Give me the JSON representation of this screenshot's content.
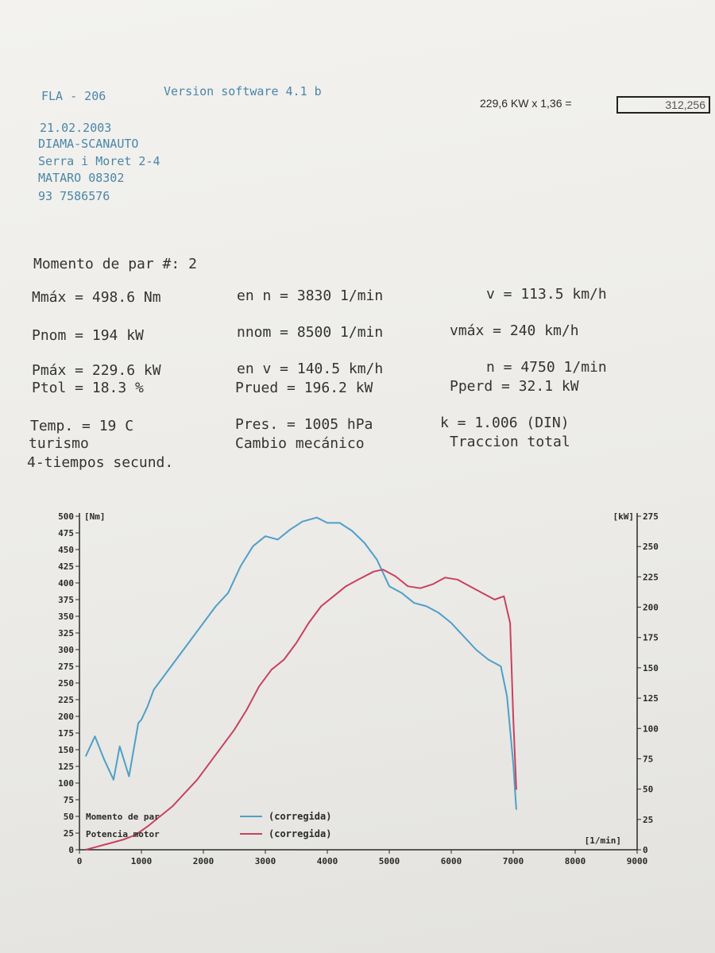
{
  "header": {
    "model": "FLA - 206",
    "software": "Version software  4.1 b",
    "date": "21.02.2003",
    "company": "DIAMA-SCANAUTO",
    "street": "Serra i Moret 2-4",
    "city": "MATARO 08302",
    "phone": "93 7586576"
  },
  "calc": {
    "expr": "229,6 KW x 1,36 =",
    "result": "312,256"
  },
  "stats": {
    "title": "Momento de par  #: 2",
    "r1": {
      "a": "Mmáx  =  498.6 Nm",
      "b": "en  n =   3830 1/min",
      "c": "v =  113.5 km/h"
    },
    "r2": {
      "a": "Pnom  =    194 kW",
      "b": "nnom  =   8500 1/min",
      "c": "vmáx  =    240 km/h"
    },
    "r3": {
      "a": "Pmáx  =  229.6 kW",
      "b": "en  v =  140.5 km/h",
      "c": "n =   4750 1/min"
    },
    "r4": {
      "a": "Ptol  =   18.3 %",
      "b": "Prued =  196.2 kW",
      "c": "Pperd =   32.1 kW"
    },
    "r5": {
      "a": "Temp. =    19  C",
      "b": "Pres. = 1005   hPa",
      "c": "k    =  1.006 (DIN)"
    },
    "r6": {
      "a": "turismo",
      "b": "Cambio mecánico",
      "c": "Traccion total"
    },
    "r7": {
      "a": "4-tiempos secund."
    }
  },
  "chart_data": {
    "type": "line",
    "xlabel": "[1/min]",
    "ylabel_left": "[Nm]",
    "ylabel_right": "[kW]",
    "xlim": [
      0,
      9000
    ],
    "ylim_left": [
      0,
      500
    ],
    "ylim_right": [
      0,
      275
    ],
    "x_ticks": [
      0,
      1000,
      2000,
      3000,
      4000,
      5000,
      6000,
      7000,
      8000,
      9000
    ],
    "y_ticks_left": [
      0,
      25,
      50,
      75,
      100,
      125,
      150,
      175,
      200,
      225,
      250,
      275,
      300,
      325,
      350,
      375,
      400,
      425,
      450,
      475,
      500
    ],
    "y_ticks_right": [
      0,
      25,
      50,
      75,
      100,
      125,
      150,
      175,
      200,
      225,
      250,
      275
    ],
    "legend": [
      {
        "label": "Momento de par",
        "sample": "(corregida)",
        "color": "#4f9fc9"
      },
      {
        "label": "Potencia motor",
        "sample": "(corregida)",
        "color": "#c8415f"
      }
    ],
    "series": [
      {
        "name": "Momento de par",
        "axis": "left",
        "color": "#4f9fc9",
        "x": [
          100,
          250,
          400,
          550,
          650,
          800,
          950,
          1000,
          1100,
          1200,
          1400,
          1600,
          1800,
          2000,
          2200,
          2400,
          2600,
          2800,
          3000,
          3200,
          3400,
          3600,
          3830,
          4000,
          4200,
          4400,
          4600,
          4800,
          5000,
          5200,
          5400,
          5600,
          5800,
          6000,
          6200,
          6400,
          6600,
          6800,
          6900,
          7000,
          7050
        ],
        "y": [
          140,
          170,
          135,
          105,
          155,
          110,
          190,
          195,
          215,
          240,
          265,
          290,
          315,
          340,
          365,
          385,
          425,
          455,
          470,
          465,
          480,
          492,
          498,
          490,
          490,
          478,
          460,
          435,
          395,
          385,
          370,
          365,
          355,
          340,
          320,
          300,
          285,
          275,
          230,
          130,
          60
        ]
      },
      {
        "name": "Potencia motor",
        "axis": "left",
        "color": "#c8415f",
        "x": [
          100,
          300,
          500,
          700,
          900,
          1100,
          1300,
          1500,
          1700,
          1900,
          2100,
          2300,
          2500,
          2700,
          2900,
          3100,
          3300,
          3500,
          3700,
          3900,
          4100,
          4300,
          4500,
          4750,
          4900,
          5100,
          5300,
          5500,
          5700,
          5900,
          6100,
          6300,
          6500,
          6700,
          6850,
          6950,
          7000,
          7050
        ],
        "y": [
          0,
          5,
          10,
          15,
          22,
          35,
          50,
          65,
          85,
          105,
          130,
          155,
          180,
          210,
          245,
          270,
          285,
          310,
          340,
          365,
          380,
          395,
          405,
          417,
          420,
          410,
          395,
          392,
          398,
          408,
          405,
          395,
          385,
          375,
          380,
          340,
          200,
          90
        ]
      }
    ]
  }
}
